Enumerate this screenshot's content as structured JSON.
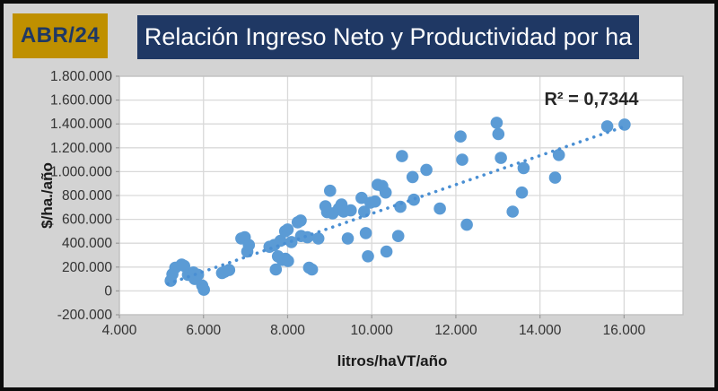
{
  "header": {
    "badge_label": "ABR/24",
    "title": "Relación Ingreso Neto y Productividad por ha"
  },
  "colors": {
    "page_bg": "#d3d3d3",
    "frame_border": "#0c0c0c",
    "badge_bg": "#bf9000",
    "badge_text": "#1f3864",
    "title_bg": "#1f3864",
    "title_text": "#ffffff",
    "plot_bg": "#ffffff",
    "gridline": "#d9d9d9",
    "plot_border": "#bfbfbf",
    "tick": "#9a9a9a",
    "tick_label": "#333333",
    "axis_title": "#1a1a1a",
    "annotation_text": "#262626",
    "marker": "#5b9bd5",
    "trendline": "#4a8fd3"
  },
  "chart_data": {
    "type": "scatter",
    "title": "Relación Ingreso Neto y Productividad por ha",
    "xlabel": "litros/haVT/año",
    "ylabel": "$/ha./año",
    "xlim": [
      4000,
      17400
    ],
    "ylim": [
      -200000,
      1800000
    ],
    "grid": true,
    "x_ticks": [
      4000,
      6000,
      8000,
      10000,
      12000,
      14000,
      16000
    ],
    "x_tick_labels": [
      "4.000",
      "6.000",
      "8.000",
      "10.000",
      "12.000",
      "14.000",
      "16.000"
    ],
    "y_ticks": [
      1800000,
      1600000,
      1400000,
      1200000,
      1000000,
      800000,
      600000,
      400000,
      200000,
      0,
      -200000
    ],
    "y_tick_labels": [
      "1.800.000",
      "1.600.000",
      "1.400.000",
      "1.200.000",
      "1.000.000",
      "800.000",
      "600.000",
      "400.000",
      "200.000",
      "0",
      "-200.000"
    ],
    "annotation": "R² = 0,7344",
    "r_squared": 0.7344,
    "trendline": {
      "style": "dotted",
      "x1": 5150,
      "y1": 59000,
      "x2": 16080,
      "y2": 1387000
    },
    "points": [
      [
        5220,
        85000
      ],
      [
        5260,
        140000
      ],
      [
        5330,
        195000
      ],
      [
        5480,
        220000
      ],
      [
        5540,
        210000
      ],
      [
        5630,
        135000
      ],
      [
        5760,
        155000
      ],
      [
        5790,
        100000
      ],
      [
        5870,
        135000
      ],
      [
        5970,
        45000
      ],
      [
        6010,
        10000
      ],
      [
        6440,
        150000
      ],
      [
        6500,
        160000
      ],
      [
        6610,
        175000
      ],
      [
        6900,
        440000
      ],
      [
        6980,
        450000
      ],
      [
        7040,
        330000
      ],
      [
        7080,
        385000
      ],
      [
        7570,
        370000
      ],
      [
        7680,
        385000
      ],
      [
        7720,
        180000
      ],
      [
        7770,
        290000
      ],
      [
        7830,
        420000
      ],
      [
        7870,
        260000
      ],
      [
        7940,
        500000
      ],
      [
        7950,
        270000
      ],
      [
        8000,
        515000
      ],
      [
        8010,
        250000
      ],
      [
        8090,
        410000
      ],
      [
        8240,
        575000
      ],
      [
        8310,
        590000
      ],
      [
        8320,
        460000
      ],
      [
        8470,
        450000
      ],
      [
        8510,
        195000
      ],
      [
        8580,
        180000
      ],
      [
        8730,
        440000
      ],
      [
        8900,
        710000
      ],
      [
        8940,
        660000
      ],
      [
        9010,
        840000
      ],
      [
        9070,
        650000
      ],
      [
        9220,
        690000
      ],
      [
        9280,
        725000
      ],
      [
        9330,
        665000
      ],
      [
        9430,
        440000
      ],
      [
        9500,
        675000
      ],
      [
        9760,
        780000
      ],
      [
        9820,
        665000
      ],
      [
        9860,
        485000
      ],
      [
        9910,
        290000
      ],
      [
        9970,
        740000
      ],
      [
        10080,
        750000
      ],
      [
        10140,
        890000
      ],
      [
        10250,
        880000
      ],
      [
        10330,
        825000
      ],
      [
        10350,
        330000
      ],
      [
        10630,
        460000
      ],
      [
        10680,
        705000
      ],
      [
        10720,
        1130000
      ],
      [
        10970,
        955000
      ],
      [
        11000,
        765000
      ],
      [
        11300,
        1015000
      ],
      [
        11620,
        690000
      ],
      [
        12110,
        1295000
      ],
      [
        12150,
        1100000
      ],
      [
        12260,
        555000
      ],
      [
        12970,
        1410000
      ],
      [
        13010,
        1315000
      ],
      [
        13070,
        1115000
      ],
      [
        13350,
        665000
      ],
      [
        13570,
        825000
      ],
      [
        13610,
        1030000
      ],
      [
        14360,
        950000
      ],
      [
        14450,
        1140000
      ],
      [
        15600,
        1380000
      ],
      [
        16010,
        1395000
      ]
    ]
  }
}
